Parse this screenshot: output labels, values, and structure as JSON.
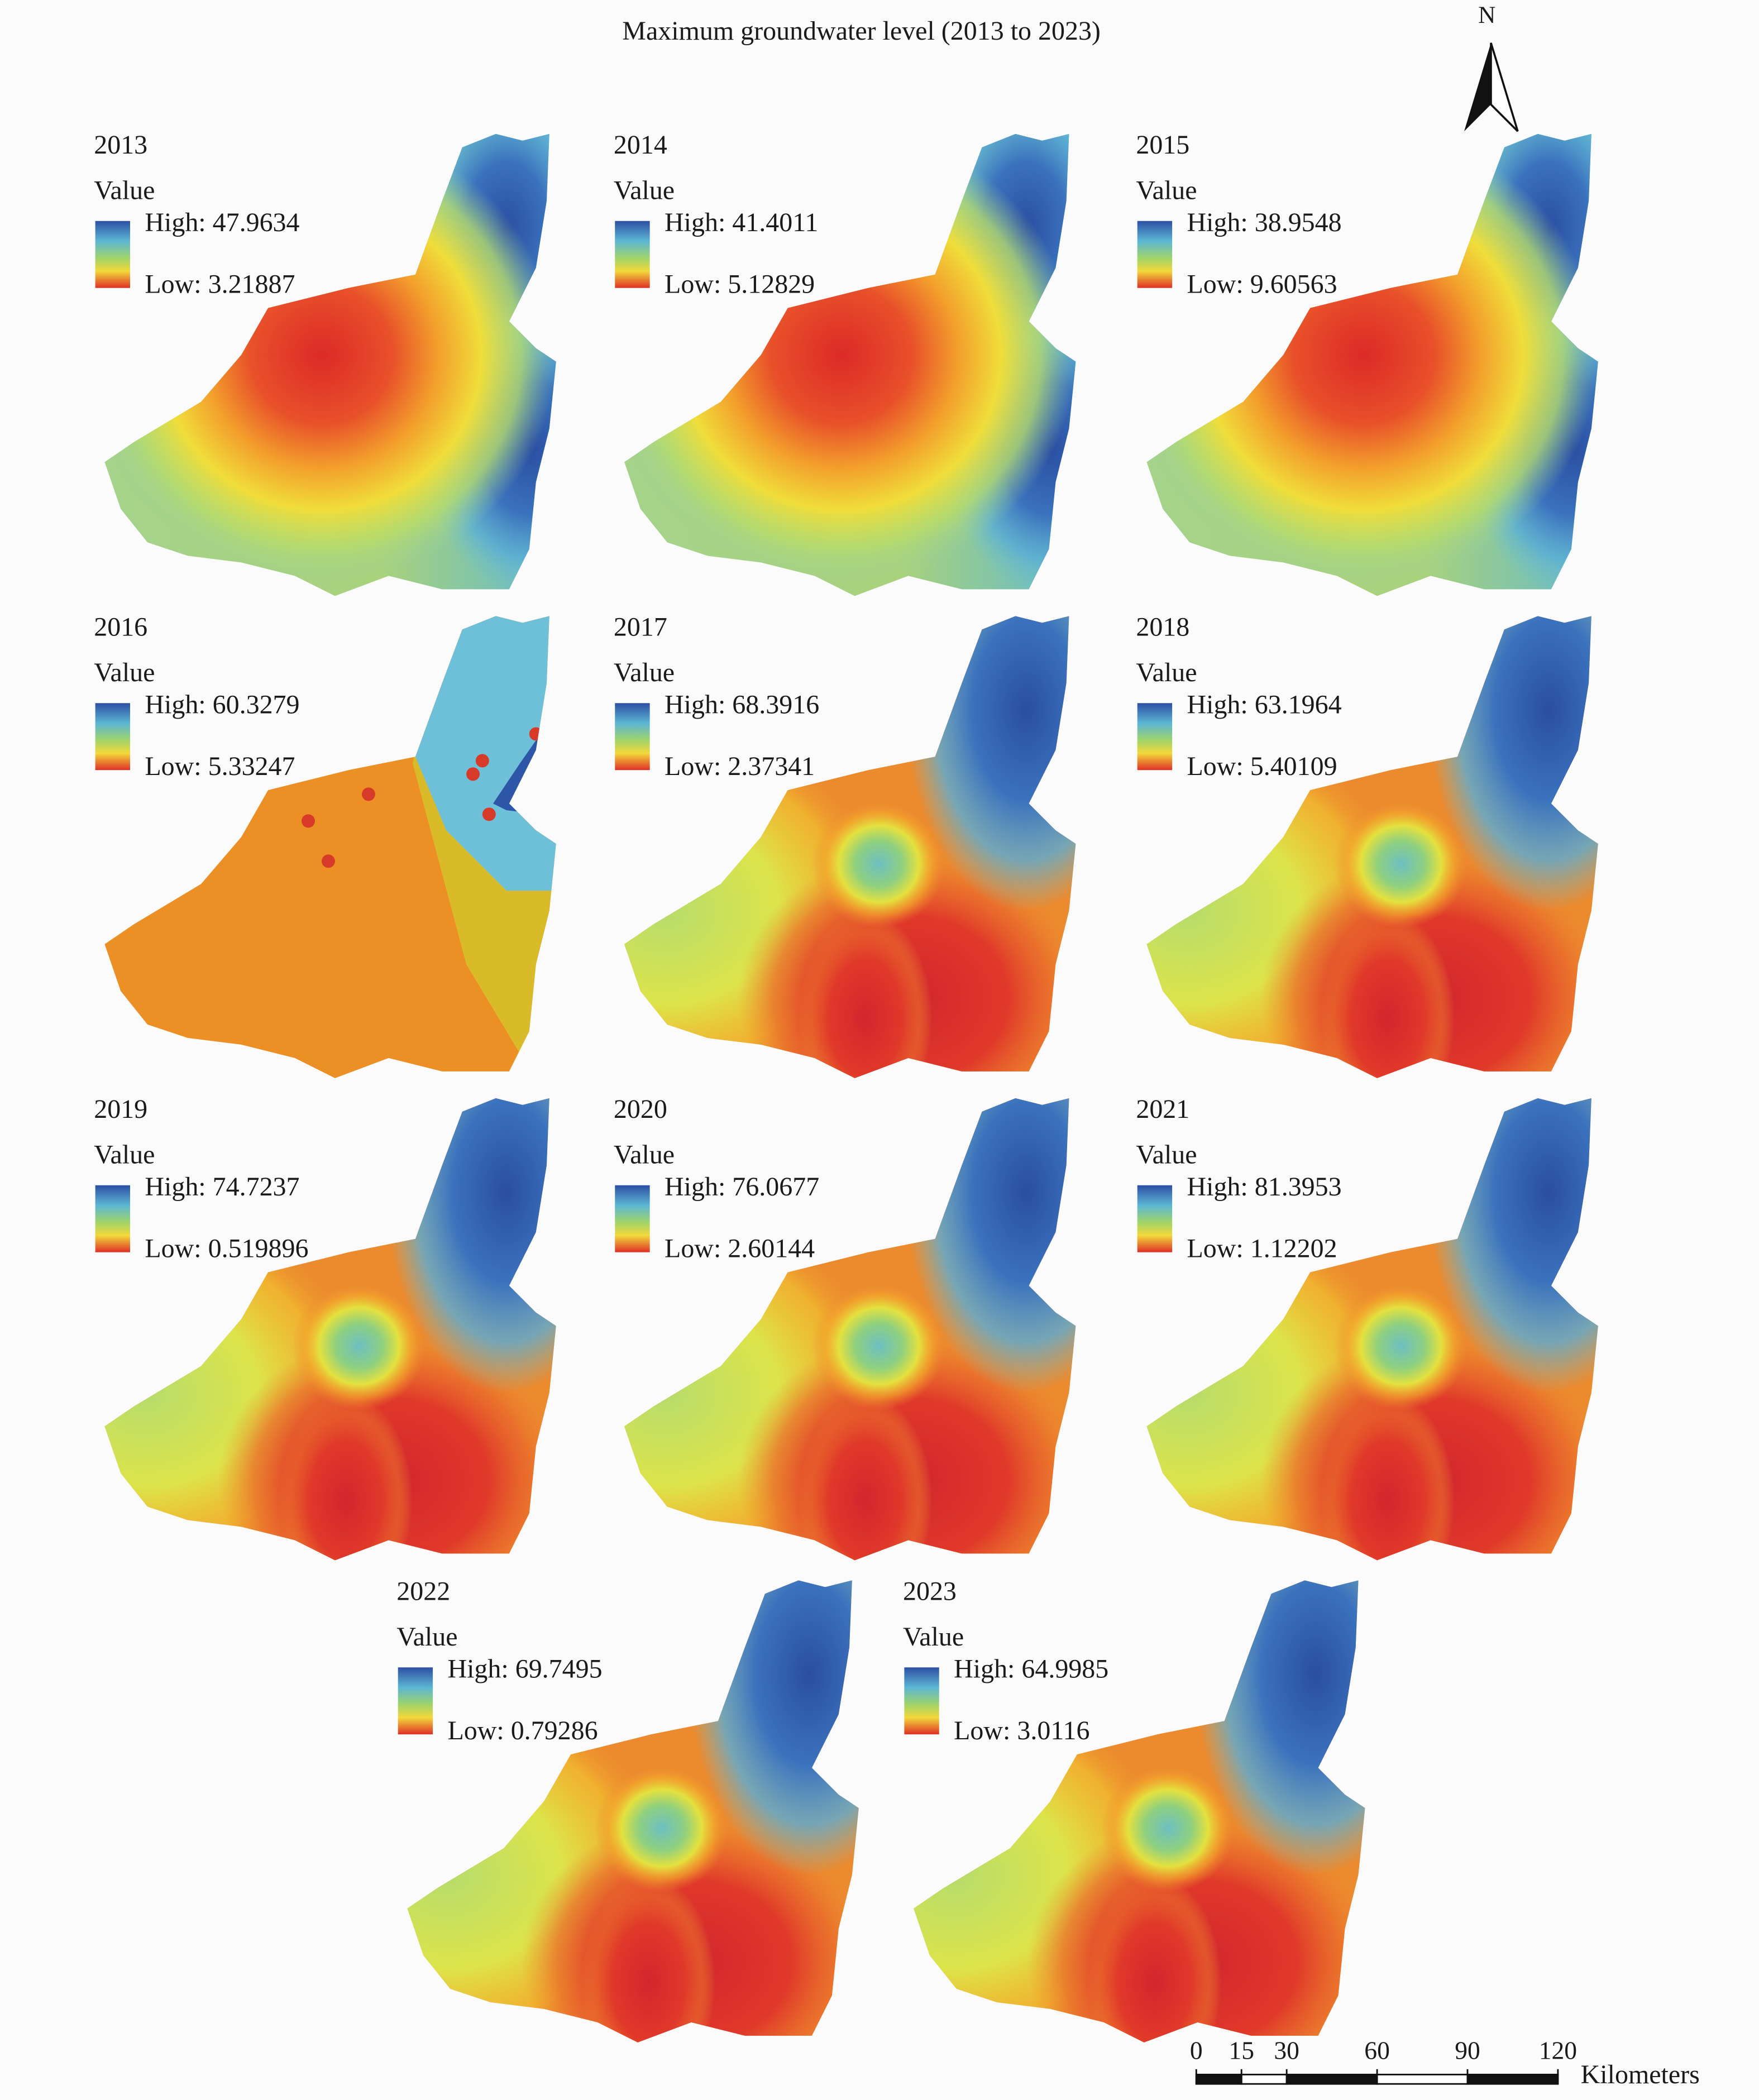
{
  "title": "Maximum groundwater level (2013 to 2023)",
  "north_label": "N",
  "panels": [
    {
      "year": "2013",
      "legend_title": "Value",
      "high": "High: 47.9634",
      "low": "Low: 3.21887"
    },
    {
      "year": "2014",
      "legend_title": "Value",
      "high": "High: 41.4011",
      "low": "Low: 5.12829"
    },
    {
      "year": "2015",
      "legend_title": "Value",
      "high": "High: 38.9548",
      "low": "Low: 9.60563"
    },
    {
      "year": "2016",
      "legend_title": "Value",
      "high": "High: 60.3279",
      "low": "Low: 5.33247"
    },
    {
      "year": "2017",
      "legend_title": "Value",
      "high": "High: 68.3916",
      "low": "Low: 2.37341"
    },
    {
      "year": "2018",
      "legend_title": "Value",
      "high": "High: 63.1964",
      "low": "Low: 5.40109"
    },
    {
      "year": "2019",
      "legend_title": "Value",
      "high": "High: 74.7237",
      "low": "Low: 0.519896"
    },
    {
      "year": "2020",
      "legend_title": "Value",
      "high": "High: 76.0677",
      "low": "Low: 2.60144"
    },
    {
      "year": "2021",
      "legend_title": "Value",
      "high": "High: 81.3953",
      "low": "Low: 1.12202"
    },
    {
      "year": "2022",
      "legend_title": "Value",
      "high": "High: 69.7495",
      "low": "Low: 0.79286"
    },
    {
      "year": "2023",
      "legend_title": "Value",
      "high": "High: 64.9985",
      "low": "Low: 3.0116"
    }
  ],
  "scale_bar": {
    "ticks": [
      0,
      15,
      30,
      60,
      90,
      120
    ],
    "unit": "Kilometers"
  }
}
